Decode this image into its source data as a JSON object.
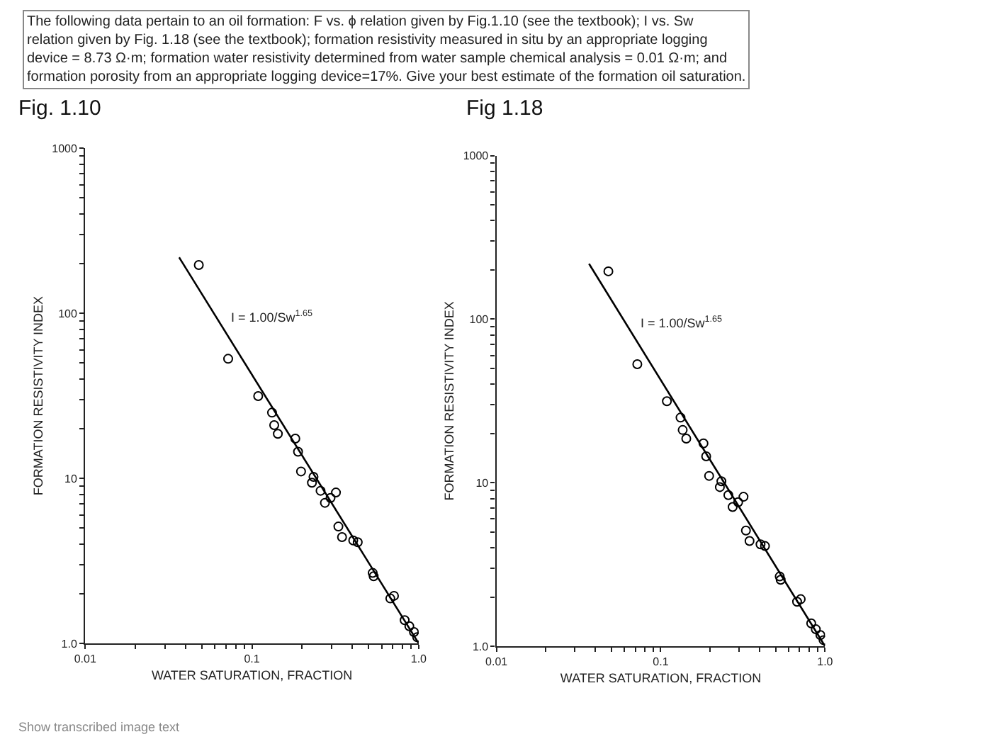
{
  "chart_data": [
    {
      "type": "scatter",
      "title": "Fig. 1.10",
      "xlabel": "WATER SATURATION, FRACTION",
      "ylabel": "FORMATION RESISTIVITY INDEX",
      "log": "xy",
      "grid": false,
      "marker": "circle",
      "xlim": [
        0.01,
        1.0
      ],
      "ylim": [
        1.0,
        1000
      ],
      "xticks": [
        {
          "value": 0.01,
          "label": "0.01"
        },
        {
          "value": 0.02,
          "label": null
        },
        {
          "value": 0.03,
          "label": null
        },
        {
          "value": 0.04,
          "label": null
        },
        {
          "value": 0.05,
          "label": null
        },
        {
          "value": 0.06,
          "label": null
        },
        {
          "value": 0.07,
          "label": null
        },
        {
          "value": 0.08,
          "label": null
        },
        {
          "value": 0.09,
          "label": null
        },
        {
          "value": 0.1,
          "label": "0.1"
        },
        {
          "value": 0.2,
          "label": null
        },
        {
          "value": 0.3,
          "label": null
        },
        {
          "value": 0.4,
          "label": null
        },
        {
          "value": 0.5,
          "label": null
        },
        {
          "value": 0.6,
          "label": null
        },
        {
          "value": 0.7,
          "label": null
        },
        {
          "value": 0.8,
          "label": null
        },
        {
          "value": 0.9,
          "label": null
        },
        {
          "value": 1.0,
          "label": "1.0"
        }
      ],
      "yticks": [
        {
          "value": 1.0,
          "label": "1.0"
        },
        {
          "value": 2,
          "label": null
        },
        {
          "value": 3,
          "label": null
        },
        {
          "value": 4,
          "label": null
        },
        {
          "value": 5,
          "label": null
        },
        {
          "value": 6,
          "label": null
        },
        {
          "value": 7,
          "label": null
        },
        {
          "value": 8,
          "label": null
        },
        {
          "value": 9,
          "label": null
        },
        10,
        {
          "value": 20,
          "label": null
        },
        {
          "value": 30,
          "label": null
        },
        {
          "value": 40,
          "label": null
        },
        {
          "value": 50,
          "label": null
        },
        {
          "value": 60,
          "label": null
        },
        {
          "value": 70,
          "label": null
        },
        {
          "value": 80,
          "label": null
        },
        {
          "value": 90,
          "label": null
        },
        100,
        {
          "value": 200,
          "label": null
        },
        {
          "value": 300,
          "label": null
        },
        {
          "value": 400,
          "label": null
        },
        {
          "value": 500,
          "label": null
        },
        {
          "value": 600,
          "label": null
        },
        {
          "value": 700,
          "label": null
        },
        {
          "value": 800,
          "label": null
        },
        {
          "value": 900,
          "label": null
        },
        1000
      ],
      "series": [
        {
          "color": "#000000",
          "x": [
            0.048,
            0.072,
            0.109,
            0.132,
            0.136,
            0.143,
            0.182,
            0.189,
            0.197,
            0.229,
            0.234,
            0.258,
            0.274,
            0.296,
            0.319,
            0.33,
            0.347,
            0.405,
            0.431,
            0.53,
            0.537,
            0.676,
            0.711,
            0.824,
            0.879,
            0.937,
            0.98
          ],
          "values": [
            196,
            53,
            31.5,
            25,
            21,
            18.6,
            17.4,
            14.5,
            11,
            9.4,
            10.2,
            8.4,
            7.1,
            7.6,
            8.2,
            5.1,
            4.4,
            4.2,
            4.1,
            2.67,
            2.55,
            1.87,
            1.94,
            1.38,
            1.27,
            1.17,
            1.09
          ]
        },
        {
          "type": "line",
          "marker": "none",
          "color": "#000000",
          "x": [
            0.0366,
            1.0
          ],
          "values": [
            218,
            1.0
          ]
        }
      ],
      "annotations": [
        "I = 1.00/Sw$^{1.65}$",
        "The following data pertain to an oil formation: F vs. ϕ relation given by Fig.1.10 (see the textbook); I vs. Sw relation given by Fig. 1.18 (see the textbook); formation resistivity measured in situ by an appropriate logging device = 8.73 Ω·m; formation water resistivity determined from water sample chemical analysis = 0.01 Ω·m; and formation porosity from an appropriate logging device=17%. Give your best estimate of the formation oil saturation.",
        "Show transcribed image text"
      ]
    },
    {
      "type": "scatter",
      "title": "Fig 1.18",
      "xlabel": "WATER SATURATION, FRACTION",
      "ylabel": "FORMATION RESISTIVITY INDEX",
      "log": "xy",
      "grid": false,
      "marker": "circle",
      "xlim": [
        0.01,
        1.0
      ],
      "ylim": [
        1.0,
        1000
      ],
      "xticks": [
        {
          "value": 0.01,
          "label": "0.01"
        },
        {
          "value": 0.02,
          "label": null
        },
        {
          "value": 0.03,
          "label": null
        },
        {
          "value": 0.04,
          "label": null
        },
        {
          "value": 0.05,
          "label": null
        },
        {
          "value": 0.06,
          "label": null
        },
        {
          "value": 0.07,
          "label": null
        },
        {
          "value": 0.08,
          "label": null
        },
        {
          "value": 0.09,
          "label": null
        },
        {
          "value": 0.1,
          "label": "0.1"
        },
        {
          "value": 0.2,
          "label": null
        },
        {
          "value": 0.3,
          "label": null
        },
        {
          "value": 0.4,
          "label": null
        },
        {
          "value": 0.5,
          "label": null
        },
        {
          "value": 0.6,
          "label": null
        },
        {
          "value": 0.7,
          "label": null
        },
        {
          "value": 0.8,
          "label": null
        },
        {
          "value": 0.9,
          "label": null
        },
        {
          "value": 1.0,
          "label": "1.0"
        }
      ],
      "yticks": [
        {
          "value": 1.0,
          "label": "1.0"
        },
        {
          "value": 2,
          "label": null
        },
        {
          "value": 3,
          "label": null
        },
        {
          "value": 4,
          "label": null
        },
        {
          "value": 5,
          "label": null
        },
        {
          "value": 6,
          "label": null
        },
        {
          "value": 7,
          "label": null
        },
        {
          "value": 8,
          "label": null
        },
        {
          "value": 9,
          "label": null
        },
        10,
        {
          "value": 20,
          "label": null
        },
        {
          "value": 30,
          "label": null
        },
        {
          "value": 40,
          "label": null
        },
        {
          "value": 50,
          "label": null
        },
        {
          "value": 60,
          "label": null
        },
        {
          "value": 70,
          "label": null
        },
        {
          "value": 80,
          "label": null
        },
        {
          "value": 90,
          "label": null
        },
        100,
        {
          "value": 200,
          "label": null
        },
        {
          "value": 300,
          "label": null
        },
        {
          "value": 400,
          "label": null
        },
        {
          "value": 500,
          "label": null
        },
        {
          "value": 600,
          "label": null
        },
        {
          "value": 700,
          "label": null
        },
        {
          "value": 800,
          "label": null
        },
        {
          "value": 900,
          "label": null
        },
        1000
      ],
      "series": [
        {
          "color": "#000000",
          "x": [
            0.048,
            0.072,
            0.109,
            0.132,
            0.136,
            0.143,
            0.182,
            0.189,
            0.197,
            0.229,
            0.234,
            0.258,
            0.274,
            0.296,
            0.319,
            0.33,
            0.347,
            0.405,
            0.431,
            0.53,
            0.537,
            0.676,
            0.711,
            0.824,
            0.879,
            0.937,
            0.98
          ],
          "values": [
            196,
            53,
            31.5,
            25,
            21,
            18.6,
            17.4,
            14.5,
            11,
            9.4,
            10.2,
            8.4,
            7.1,
            7.6,
            8.2,
            5.1,
            4.4,
            4.2,
            4.1,
            2.67,
            2.55,
            1.87,
            1.94,
            1.38,
            1.27,
            1.17,
            1.09
          ]
        },
        {
          "type": "line",
          "marker": "none",
          "color": "#000000",
          "x": [
            0.0366,
            1.0
          ],
          "values": [
            218,
            1.0
          ]
        }
      ],
      "annotations": [
        "I = 1.00/Sw$^{1.65}$"
      ]
    }
  ]
}
